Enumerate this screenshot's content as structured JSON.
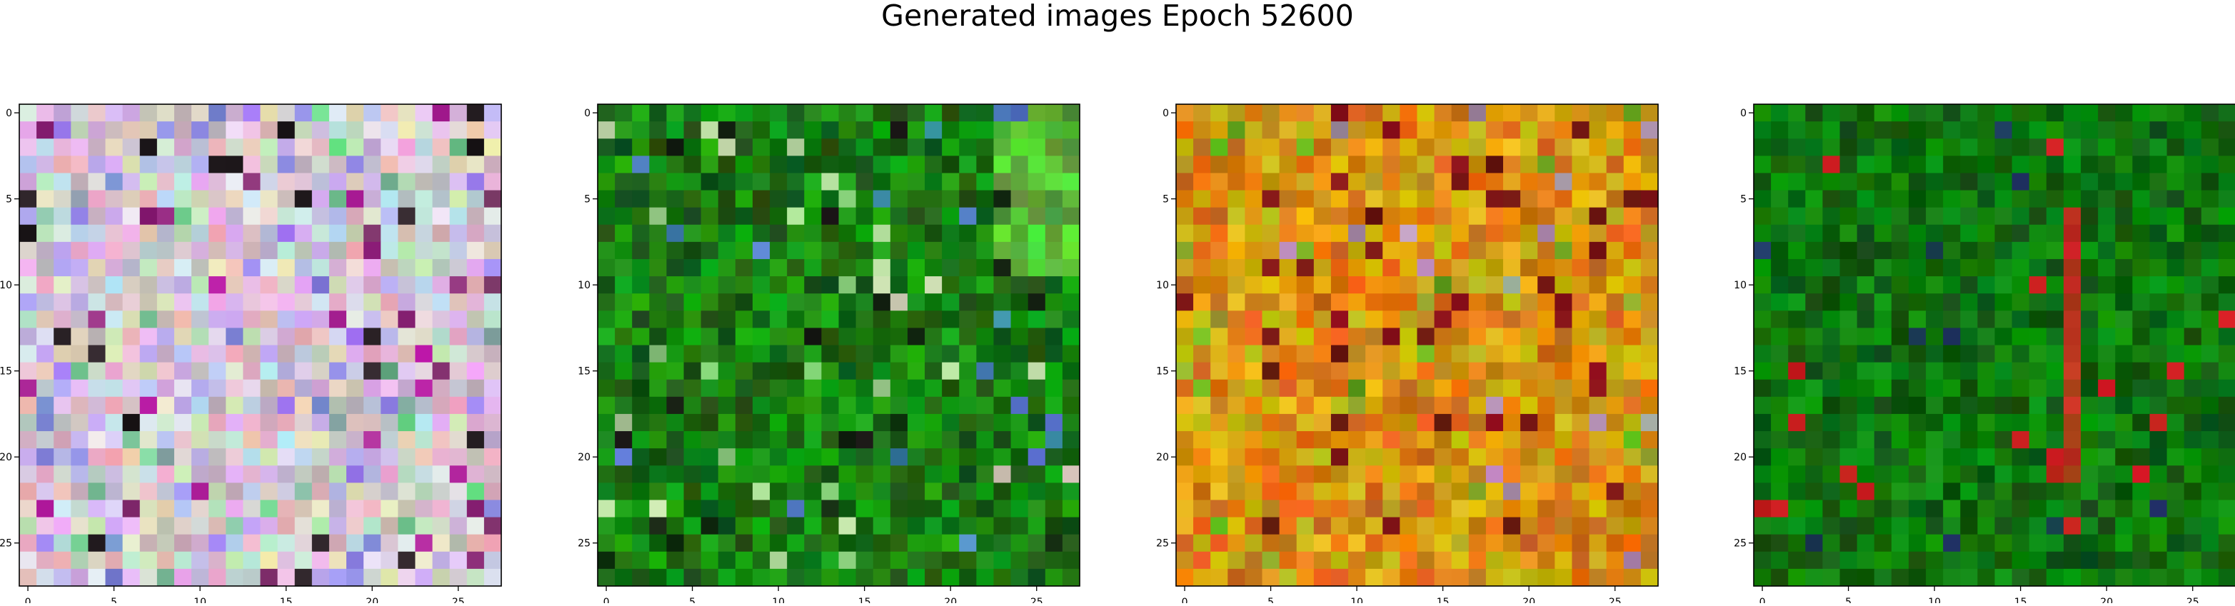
{
  "figure": {
    "title": "Generated images Epoch 52600"
  },
  "chart_data": [
    {
      "type": "heatmap",
      "grid_size": 28,
      "palette": "lavender-pastel",
      "x_ticks": [
        0,
        5,
        10,
        15,
        20,
        25
      ],
      "y_ticks": [
        0,
        5,
        10,
        15,
        20,
        25
      ],
      "xlim": [
        -0.5,
        27.5
      ],
      "ylim": [
        27.5,
        -0.5
      ]
    },
    {
      "type": "heatmap",
      "grid_size": 28,
      "palette": "green",
      "x_ticks": [
        0,
        5,
        10,
        15,
        20,
        25
      ],
      "y_ticks": [
        0,
        5,
        10,
        15,
        20,
        25
      ],
      "xlim": [
        -0.5,
        27.5
      ],
      "ylim": [
        27.5,
        -0.5
      ]
    },
    {
      "type": "heatmap",
      "grid_size": 28,
      "palette": "orange",
      "x_ticks": [
        0,
        5,
        10,
        15,
        20,
        25
      ],
      "y_ticks": [
        0,
        5,
        10,
        15,
        20,
        25
      ],
      "xlim": [
        -0.5,
        27.5
      ],
      "ylim": [
        27.5,
        -0.5
      ]
    },
    {
      "type": "heatmap",
      "grid_size": 28,
      "palette": "dark-green",
      "x_ticks": [
        0,
        5,
        10,
        15,
        20,
        25
      ],
      "y_ticks": [
        0,
        5,
        10,
        15,
        20,
        25
      ],
      "xlim": [
        -0.5,
        27.5
      ],
      "ylim": [
        27.5,
        -0.5
      ]
    }
  ]
}
